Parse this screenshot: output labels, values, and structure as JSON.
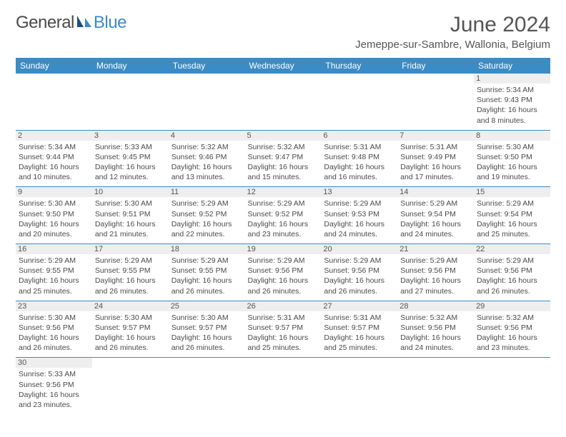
{
  "brand": {
    "part1": "General",
    "part2": "Blue"
  },
  "title": "June 2024",
  "location": "Jemeppe-sur-Sambre, Wallonia, Belgium",
  "colors": {
    "header_bg": "#3b8bc4",
    "header_fg": "#ffffff",
    "daynum_bg": "#eeeeee",
    "border": "#3b8bc4",
    "text": "#4a4a4a",
    "title": "#555555"
  },
  "weekdays": [
    "Sunday",
    "Monday",
    "Tuesday",
    "Wednesday",
    "Thursday",
    "Friday",
    "Saturday"
  ],
  "weeks": [
    [
      null,
      null,
      null,
      null,
      null,
      null,
      {
        "n": "1",
        "sunrise": "5:34 AM",
        "sunset": "9:43 PM",
        "day_h": "16",
        "day_m": "8"
      }
    ],
    [
      {
        "n": "2",
        "sunrise": "5:34 AM",
        "sunset": "9:44 PM",
        "day_h": "16",
        "day_m": "10"
      },
      {
        "n": "3",
        "sunrise": "5:33 AM",
        "sunset": "9:45 PM",
        "day_h": "16",
        "day_m": "12"
      },
      {
        "n": "4",
        "sunrise": "5:32 AM",
        "sunset": "9:46 PM",
        "day_h": "16",
        "day_m": "13"
      },
      {
        "n": "5",
        "sunrise": "5:32 AM",
        "sunset": "9:47 PM",
        "day_h": "16",
        "day_m": "15"
      },
      {
        "n": "6",
        "sunrise": "5:31 AM",
        "sunset": "9:48 PM",
        "day_h": "16",
        "day_m": "16"
      },
      {
        "n": "7",
        "sunrise": "5:31 AM",
        "sunset": "9:49 PM",
        "day_h": "16",
        "day_m": "17"
      },
      {
        "n": "8",
        "sunrise": "5:30 AM",
        "sunset": "9:50 PM",
        "day_h": "16",
        "day_m": "19"
      }
    ],
    [
      {
        "n": "9",
        "sunrise": "5:30 AM",
        "sunset": "9:50 PM",
        "day_h": "16",
        "day_m": "20"
      },
      {
        "n": "10",
        "sunrise": "5:30 AM",
        "sunset": "9:51 PM",
        "day_h": "16",
        "day_m": "21"
      },
      {
        "n": "11",
        "sunrise": "5:29 AM",
        "sunset": "9:52 PM",
        "day_h": "16",
        "day_m": "22"
      },
      {
        "n": "12",
        "sunrise": "5:29 AM",
        "sunset": "9:52 PM",
        "day_h": "16",
        "day_m": "23"
      },
      {
        "n": "13",
        "sunrise": "5:29 AM",
        "sunset": "9:53 PM",
        "day_h": "16",
        "day_m": "24"
      },
      {
        "n": "14",
        "sunrise": "5:29 AM",
        "sunset": "9:54 PM",
        "day_h": "16",
        "day_m": "24"
      },
      {
        "n": "15",
        "sunrise": "5:29 AM",
        "sunset": "9:54 PM",
        "day_h": "16",
        "day_m": "25"
      }
    ],
    [
      {
        "n": "16",
        "sunrise": "5:29 AM",
        "sunset": "9:55 PM",
        "day_h": "16",
        "day_m": "25"
      },
      {
        "n": "17",
        "sunrise": "5:29 AM",
        "sunset": "9:55 PM",
        "day_h": "16",
        "day_m": "26"
      },
      {
        "n": "18",
        "sunrise": "5:29 AM",
        "sunset": "9:55 PM",
        "day_h": "16",
        "day_m": "26"
      },
      {
        "n": "19",
        "sunrise": "5:29 AM",
        "sunset": "9:56 PM",
        "day_h": "16",
        "day_m": "26"
      },
      {
        "n": "20",
        "sunrise": "5:29 AM",
        "sunset": "9:56 PM",
        "day_h": "16",
        "day_m": "26"
      },
      {
        "n": "21",
        "sunrise": "5:29 AM",
        "sunset": "9:56 PM",
        "day_h": "16",
        "day_m": "27"
      },
      {
        "n": "22",
        "sunrise": "5:29 AM",
        "sunset": "9:56 PM",
        "day_h": "16",
        "day_m": "26"
      }
    ],
    [
      {
        "n": "23",
        "sunrise": "5:30 AM",
        "sunset": "9:56 PM",
        "day_h": "16",
        "day_m": "26"
      },
      {
        "n": "24",
        "sunrise": "5:30 AM",
        "sunset": "9:57 PM",
        "day_h": "16",
        "day_m": "26"
      },
      {
        "n": "25",
        "sunrise": "5:30 AM",
        "sunset": "9:57 PM",
        "day_h": "16",
        "day_m": "26"
      },
      {
        "n": "26",
        "sunrise": "5:31 AM",
        "sunset": "9:57 PM",
        "day_h": "16",
        "day_m": "25"
      },
      {
        "n": "27",
        "sunrise": "5:31 AM",
        "sunset": "9:57 PM",
        "day_h": "16",
        "day_m": "25"
      },
      {
        "n": "28",
        "sunrise": "5:32 AM",
        "sunset": "9:56 PM",
        "day_h": "16",
        "day_m": "24"
      },
      {
        "n": "29",
        "sunrise": "5:32 AM",
        "sunset": "9:56 PM",
        "day_h": "16",
        "day_m": "23"
      }
    ],
    [
      {
        "n": "30",
        "sunrise": "5:33 AM",
        "sunset": "9:56 PM",
        "day_h": "16",
        "day_m": "23"
      },
      null,
      null,
      null,
      null,
      null,
      null
    ]
  ],
  "labels": {
    "sunrise": "Sunrise:",
    "sunset": "Sunset:",
    "daylight_prefix": "Daylight:",
    "hours_word": "hours",
    "and_word": "and",
    "minutes_word": "minutes."
  }
}
